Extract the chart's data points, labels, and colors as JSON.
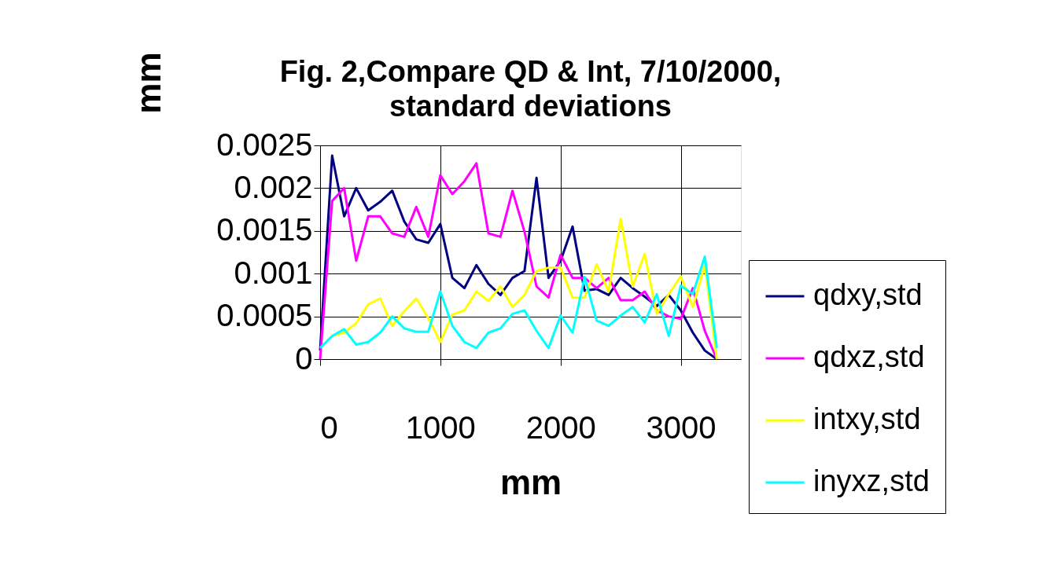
{
  "chart_data": {
    "type": "line",
    "title": "Fig. 2,Compare QD & Int, 7/10/2000, standard deviations",
    "xlabel": "mm",
    "ylabel": "mm",
    "x": [
      0,
      100,
      200,
      300,
      400,
      500,
      600,
      700,
      800,
      900,
      1000,
      1100,
      1200,
      1300,
      1400,
      1500,
      1600,
      1700,
      1800,
      1900,
      2000,
      2100,
      2200,
      2300,
      2400,
      2500,
      2600,
      2700,
      2800,
      2900,
      3000,
      3100,
      3200,
      3300
    ],
    "series": [
      {
        "name": "qdxy,std",
        "color": "#000080",
        "values": [
          0.0001,
          0.00238,
          0.00167,
          0.002,
          0.00174,
          0.00184,
          0.00197,
          0.00161,
          0.0014,
          0.00136,
          0.00158,
          0.00095,
          0.00083,
          0.0011,
          0.00088,
          0.00075,
          0.00095,
          0.00103,
          0.00212,
          0.00095,
          0.00115,
          0.00155,
          0.0008,
          0.00082,
          0.00075,
          0.00095,
          0.00083,
          0.00073,
          0.00062,
          0.00075,
          0.00057,
          0.00031,
          0.0001,
          0
        ]
      },
      {
        "name": "qdxz,std",
        "color": "#ff00ff",
        "values": [
          0,
          0.00185,
          0.002,
          0.00115,
          0.00167,
          0.00167,
          0.00147,
          0.00143,
          0.00178,
          0.00143,
          0.00215,
          0.00193,
          0.00208,
          0.00229,
          0.00147,
          0.00143,
          0.00197,
          0.00149,
          0.00085,
          0.00072,
          0.00122,
          0.00095,
          0.00095,
          0.00083,
          0.00095,
          0.00069,
          0.00069,
          0.00079,
          0.00057,
          0.0005,
          0.00047,
          0.00083,
          0.00033,
          0
        ]
      },
      {
        "name": "intxy,std",
        "color": "#ffff00",
        "values": [
          null,
          0.00027,
          0.00031,
          0.00042,
          0.00064,
          0.00071,
          0.00039,
          0.00056,
          0.00071,
          0.00048,
          0.0002,
          0.00052,
          0.00057,
          0.00079,
          0.00068,
          0.00085,
          0.00061,
          0.00075,
          0.00103,
          0.00107,
          0.00107,
          0.00072,
          0.00072,
          0.00111,
          0.00079,
          0.00164,
          0.00085,
          0.00123,
          0.00053,
          0.00076,
          0.00097,
          0.00061,
          0.0011,
          0
        ]
      },
      {
        "name": "inyxz,std",
        "color": "#00ffff",
        "values": [
          0.00013,
          0.00027,
          0.00035,
          0.00017,
          0.0002,
          0.00031,
          0.0005,
          0.00036,
          0.00032,
          0.00032,
          0.00079,
          0.00039,
          0.0002,
          0.00013,
          0.00031,
          0.00036,
          0.00053,
          0.00057,
          0.00033,
          0.00013,
          0.00051,
          0.00031,
          0.00096,
          0.00045,
          0.00039,
          0.00051,
          0.00061,
          0.00043,
          0.00076,
          0.00027,
          0.00086,
          0.00076,
          0.0012,
          0.00013
        ]
      }
    ],
    "xlim": [
      0,
      3500
    ],
    "xticks": [
      0,
      1000,
      2000,
      3000
    ],
    "ylim": [
      0,
      0.0025
    ],
    "yticks": [
      0,
      0.0005,
      0.001,
      0.0015,
      0.002,
      0.0025
    ],
    "grid": true,
    "legend": "right",
    "marker": "none",
    "line_style": "solid"
  }
}
